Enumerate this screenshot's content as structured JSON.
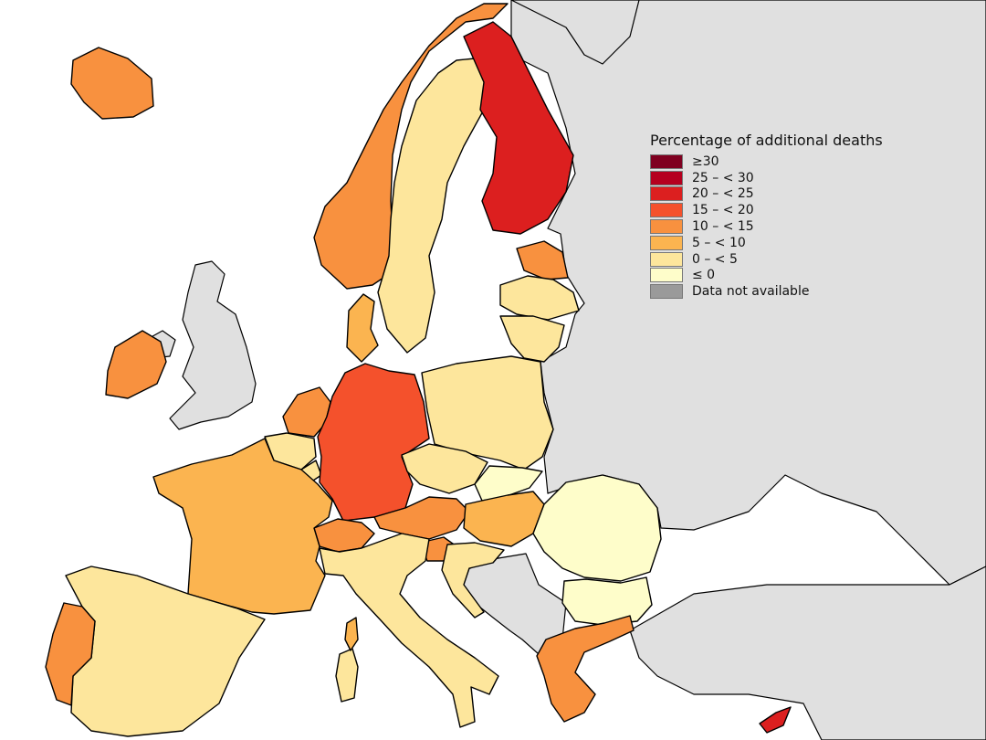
{
  "legend": {
    "title": "Percentage of additional deaths",
    "classes": [
      {
        "label": "≥30",
        "color": "#7f0020"
      },
      {
        "label": "25 – < 30",
        "color": "#b5001f"
      },
      {
        "label": "20 – < 25",
        "color": "#dc1f1f"
      },
      {
        "label": "15 – < 20",
        "color": "#f4512c"
      },
      {
        "label": "10 – < 15",
        "color": "#f8913f"
      },
      {
        "label": "5 – < 10",
        "color": "#fbb450"
      },
      {
        "label": "0 – < 5",
        "color": "#fde69c"
      },
      {
        "label": "≤ 0",
        "color": "#fefdca"
      },
      {
        "label": "Data not available",
        "color": "#9a9a9a"
      }
    ]
  },
  "map": {
    "no_data_fill": "#e0e0e0",
    "sea_fill": "#ffffff",
    "countries": [
      {
        "id": "iceland",
        "class": "10 – < 15"
      },
      {
        "id": "norway",
        "class": "10 – < 15"
      },
      {
        "id": "sweden",
        "class": "0 – < 5"
      },
      {
        "id": "finland",
        "class": "20 – < 25"
      },
      {
        "id": "estonia",
        "class": "10 – < 15"
      },
      {
        "id": "latvia",
        "class": "0 – < 5"
      },
      {
        "id": "lithuania",
        "class": "0 – < 5"
      },
      {
        "id": "denmark",
        "class": "5 – < 10"
      },
      {
        "id": "ireland",
        "class": "10 – < 15"
      },
      {
        "id": "netherlands",
        "class": "10 – < 15"
      },
      {
        "id": "belgium",
        "class": "0 – < 5"
      },
      {
        "id": "luxembourg",
        "class": "0 – < 5"
      },
      {
        "id": "germany",
        "class": "15 – < 20"
      },
      {
        "id": "poland",
        "class": "0 – < 5"
      },
      {
        "id": "czechia",
        "class": "0 – < 5"
      },
      {
        "id": "slovakia",
        "class": "≤ 0"
      },
      {
        "id": "austria",
        "class": "10 – < 15"
      },
      {
        "id": "switzerland",
        "class": "10 – < 15"
      },
      {
        "id": "liechtenstein",
        "class": "10 – < 15"
      },
      {
        "id": "hungary",
        "class": "5 – < 10"
      },
      {
        "id": "slovenia",
        "class": "10 – < 15"
      },
      {
        "id": "croatia",
        "class": "0 – < 5"
      },
      {
        "id": "romania",
        "class": "≤ 0"
      },
      {
        "id": "bulgaria",
        "class": "≤ 0"
      },
      {
        "id": "france",
        "class": "5 – < 10"
      },
      {
        "id": "spain",
        "class": "0 – < 5"
      },
      {
        "id": "portugal",
        "class": "10 – < 15"
      },
      {
        "id": "italy",
        "class": "0 – < 5"
      },
      {
        "id": "sardinia",
        "class": "0 – < 5"
      },
      {
        "id": "corsica",
        "class": "5 – < 10"
      },
      {
        "id": "malta",
        "class": "0 – < 5"
      },
      {
        "id": "greece",
        "class": "10 – < 15"
      },
      {
        "id": "cyprus",
        "class": "20 – < 25"
      }
    ]
  }
}
